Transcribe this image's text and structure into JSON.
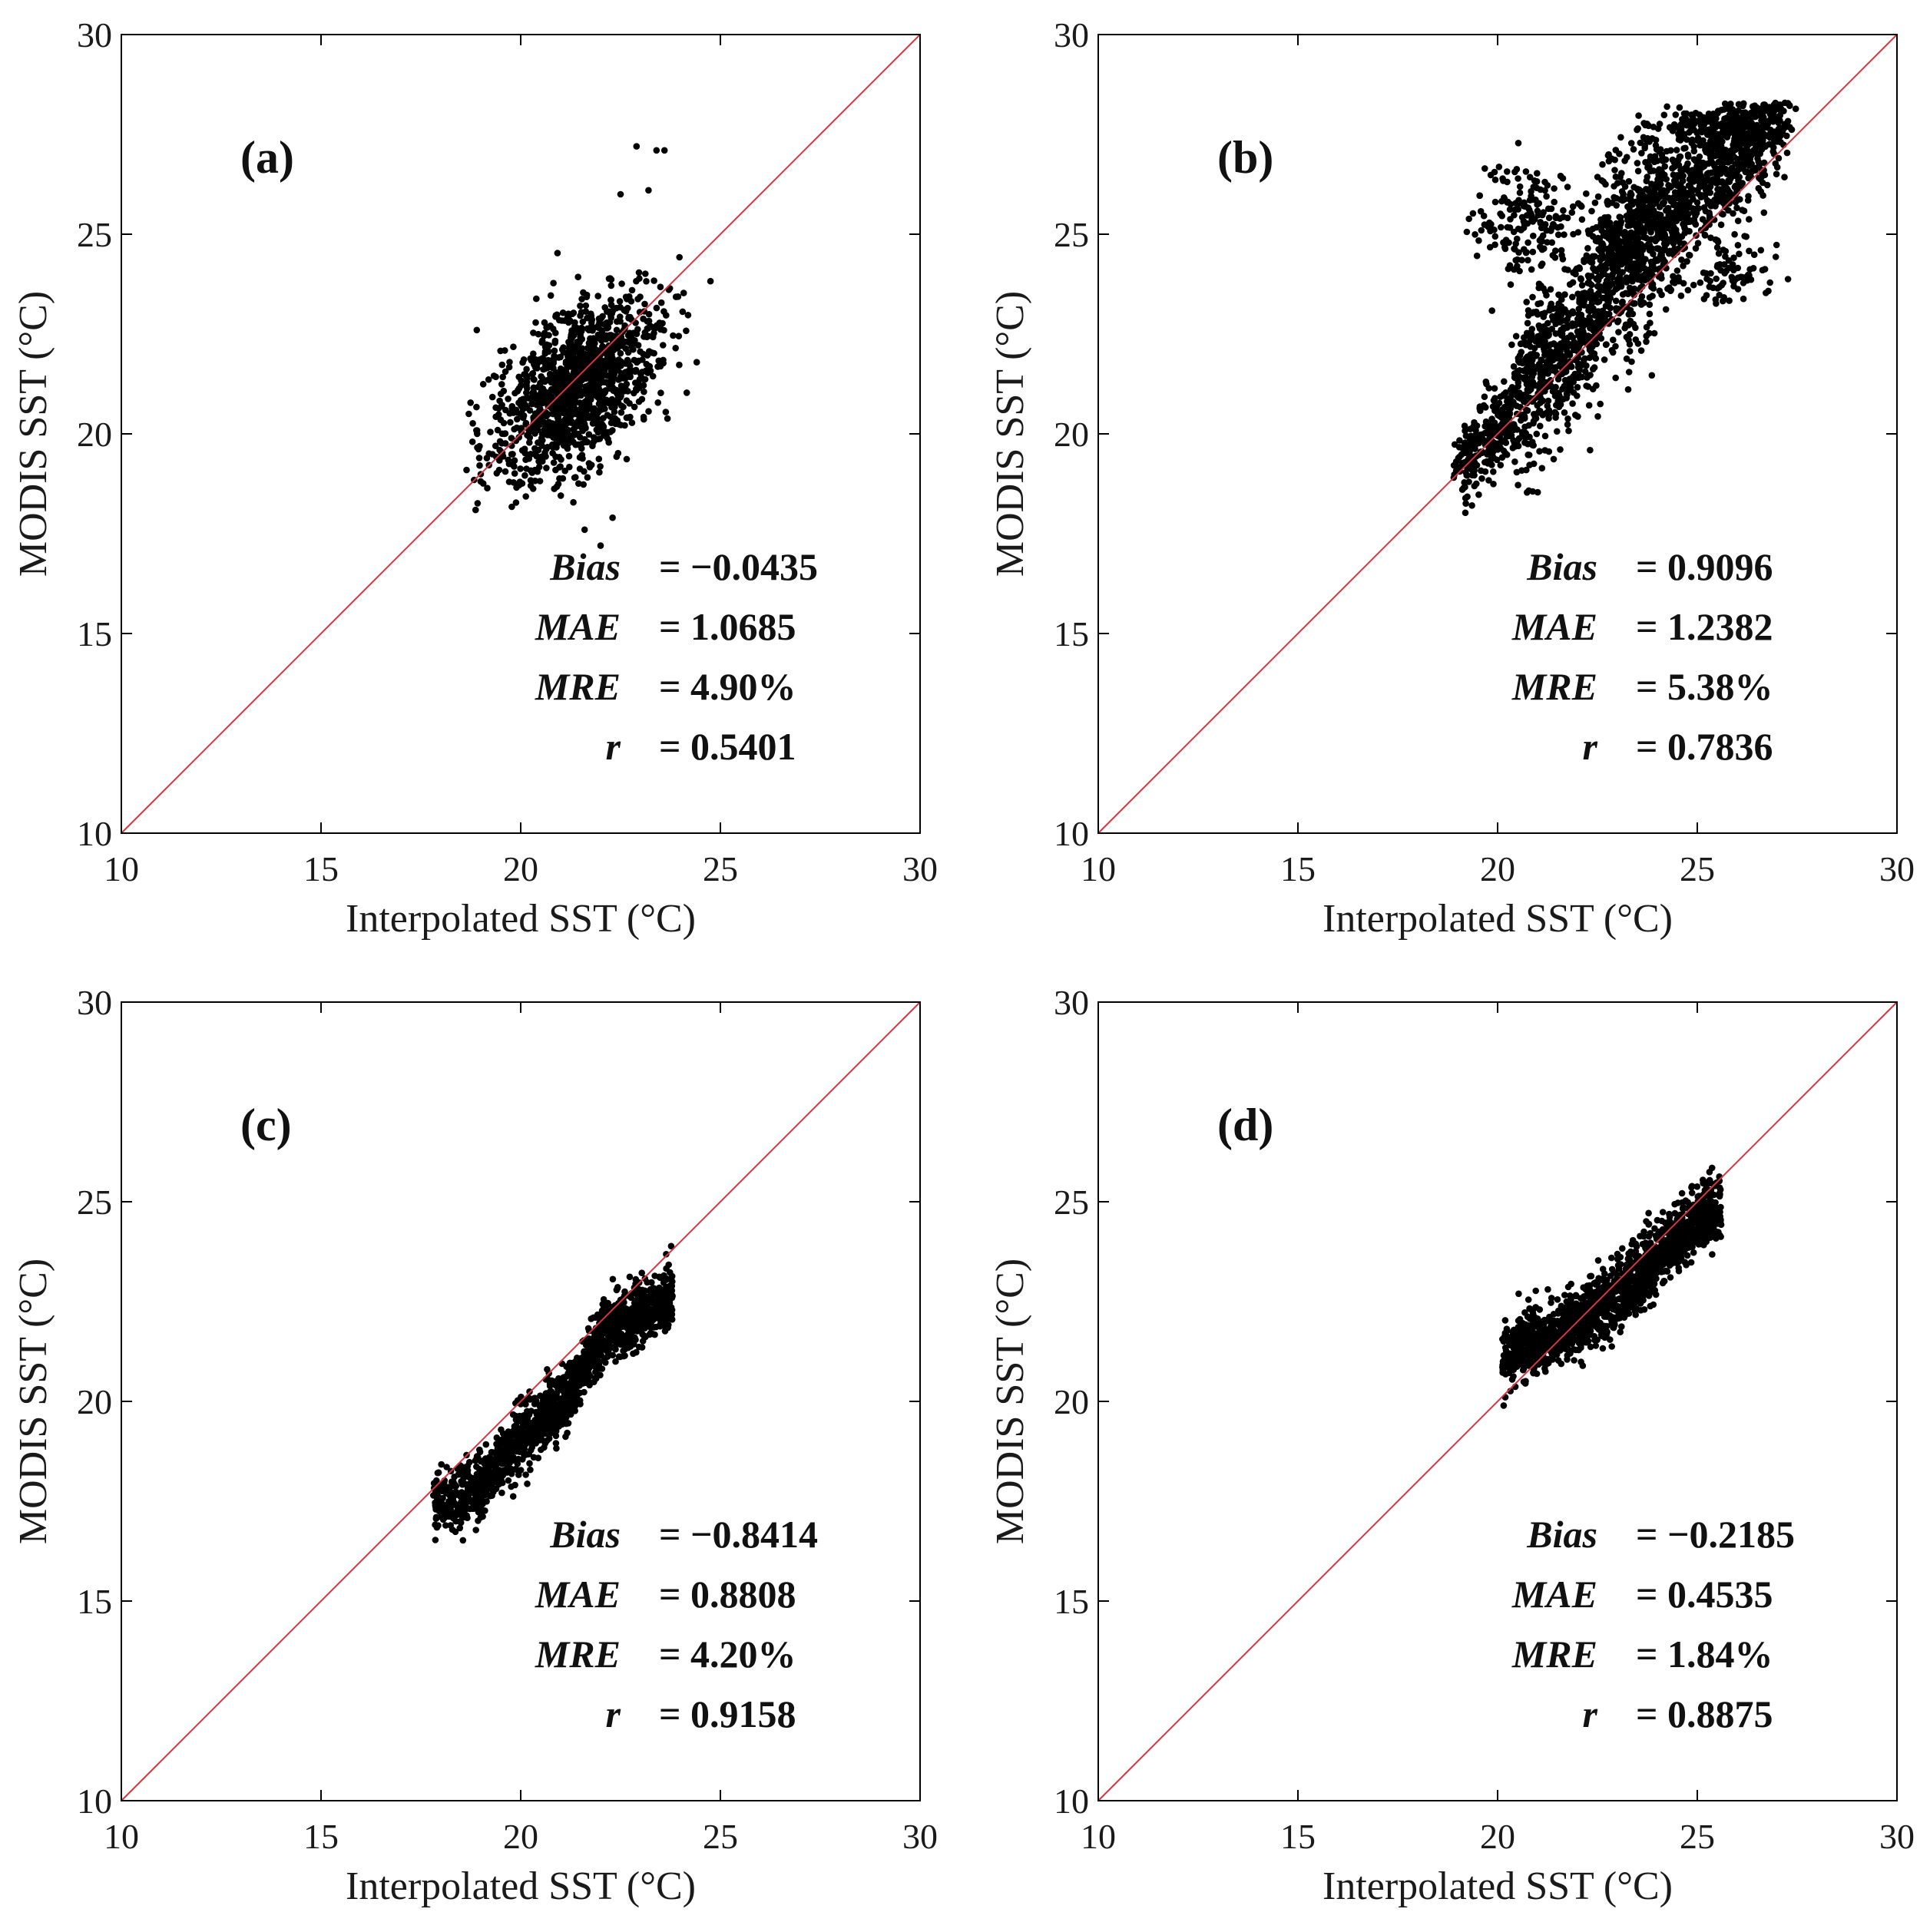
{
  "chart_data": [
    {
      "type": "scatter",
      "panel_label": "(a)",
      "xlabel": "Interpolated SST (°C)",
      "ylabel": "MODIS SST (°C)",
      "xlim": [
        10,
        30
      ],
      "ylim": [
        10,
        30
      ],
      "xticks": [
        "10",
        "15",
        "20",
        "25",
        "30"
      ],
      "yticks": [
        "10",
        "15",
        "20",
        "25",
        "30"
      ],
      "reference_line": {
        "type": "1:1",
        "color": "#d9343f"
      },
      "point_color": "#000000",
      "cloud": {
        "cx": 21.4,
        "cy": 21.2,
        "sx": 1.05,
        "sy": 1.15,
        "rho": 0.54,
        "n": 1300,
        "xmin": 18.6,
        "xmax": 24.9,
        "ymin": 17.2,
        "ymax": 27.2
      },
      "extra_points": [
        [
          22.9,
          27.2
        ],
        [
          23.4,
          27.1
        ],
        [
          23.6,
          27.1
        ],
        [
          23.2,
          26.1
        ],
        [
          22.5,
          26.0
        ],
        [
          18.7,
          20.5
        ],
        [
          18.9,
          22.6
        ],
        [
          22.0,
          17.2
        ],
        [
          21.6,
          17.6
        ],
        [
          22.3,
          17.9
        ]
      ],
      "stats": [
        {
          "name": "Bias",
          "value": "= −0.0435"
        },
        {
          "name": "MAE",
          "value": "= 1.0685"
        },
        {
          "name": "MRE",
          "value": "= 4.90%"
        },
        {
          "name": "r",
          "value": "= 0.5401"
        }
      ]
    },
    {
      "type": "scatter",
      "panel_label": "(b)",
      "xlabel": "Interpolated SST (°C)",
      "ylabel": "MODIS SST (°C)",
      "xlim": [
        10,
        30
      ],
      "ylim": [
        10,
        30
      ],
      "xticks": [
        "10",
        "15",
        "20",
        "25",
        "30"
      ],
      "yticks": [
        "10",
        "15",
        "20",
        "25",
        "30"
      ],
      "reference_line": {
        "type": "1:1",
        "color": "#d9343f"
      },
      "point_color": "#000000",
      "segments": [
        {
          "x0": 19.0,
          "x1": 20.5,
          "offset": 0.1,
          "spread": 0.55,
          "n": 260
        },
        {
          "x0": 20.5,
          "x1": 22.5,
          "offset": 0.5,
          "spread": 1.1,
          "n": 600
        },
        {
          "x0": 22.5,
          "x1": 24.0,
          "offset": 1.4,
          "spread": 1.1,
          "n": 600
        },
        {
          "x0": 24.0,
          "x1": 27.3,
          "offset": 1.1,
          "spread": 0.85,
          "n": 900
        }
      ],
      "clusters": [
        {
          "cx": 20.8,
          "cy": 25.3,
          "sx": 0.7,
          "sy": 0.65,
          "n": 180
        },
        {
          "cx": 25.1,
          "cy": 27.6,
          "sx": 0.8,
          "sy": 0.35,
          "n": 160
        },
        {
          "cx": 25.8,
          "cy": 24.0,
          "sx": 0.6,
          "sy": 0.35,
          "n": 70
        }
      ],
      "ylim_data": [
        17.4,
        28.3
      ],
      "stats": [
        {
          "name": "Bias",
          "value": "= 0.9096"
        },
        {
          "name": "MAE",
          "value": "= 1.2382"
        },
        {
          "name": "MRE",
          "value": "= 5.38%"
        },
        {
          "name": "r",
          "value": "= 0.7836"
        }
      ]
    },
    {
      "type": "scatter",
      "panel_label": "(c)",
      "xlabel": "Interpolated SST (°C)",
      "ylabel": "MODIS SST (°C)",
      "xlim": [
        10,
        30
      ],
      "ylim": [
        10,
        30
      ],
      "xticks": [
        "10",
        "15",
        "20",
        "25",
        "30"
      ],
      "yticks": [
        "10",
        "15",
        "20",
        "25",
        "30"
      ],
      "reference_line": {
        "type": "1:1",
        "color": "#d9343f"
      },
      "point_color": "#000000",
      "band": {
        "x0": 17.8,
        "x1": 23.8,
        "spread": 0.4,
        "n": 1500
      },
      "curve_x": [
        17.8,
        19.0,
        20.0,
        21.0,
        22.0,
        23.0,
        23.8
      ],
      "curve_y": [
        17.4,
        17.9,
        19.1,
        19.9,
        21.6,
        22.2,
        22.6
      ],
      "stats": [
        {
          "name": "Bias",
          "value": "= −0.8414"
        },
        {
          "name": "MAE",
          "value": "= 0.8808"
        },
        {
          "name": "MRE",
          "value": "= 4.20%"
        },
        {
          "name": "r",
          "value": "= 0.9158"
        }
      ]
    },
    {
      "type": "scatter",
      "panel_label": "(d)",
      "xlabel": "Interpolated SST (°C)",
      "ylabel": "MODIS SST (°C)",
      "xlim": [
        10,
        30
      ],
      "ylim": [
        10,
        30
      ],
      "xticks": [
        "10",
        "15",
        "20",
        "25",
        "30"
      ],
      "yticks": [
        "10",
        "15",
        "20",
        "25",
        "30"
      ],
      "reference_line": {
        "type": "1:1",
        "color": "#d9343f"
      },
      "point_color": "#000000",
      "band": {
        "x0": 20.1,
        "x1": 25.6,
        "spread": 0.42,
        "n": 1500
      },
      "curve_x": [
        20.1,
        21.0,
        22.0,
        23.0,
        24.0,
        25.0,
        25.6
      ],
      "curve_y": [
        21.1,
        21.5,
        22.0,
        22.6,
        23.6,
        24.5,
        24.9
      ],
      "stats": [
        {
          "name": "Bias",
          "value": "= −0.2185"
        },
        {
          "name": "MAE",
          "value": "= 0.4535"
        },
        {
          "name": "MRE",
          "value": "= 1.84%"
        },
        {
          "name": "r",
          "value": "= 0.8875"
        }
      ]
    }
  ]
}
